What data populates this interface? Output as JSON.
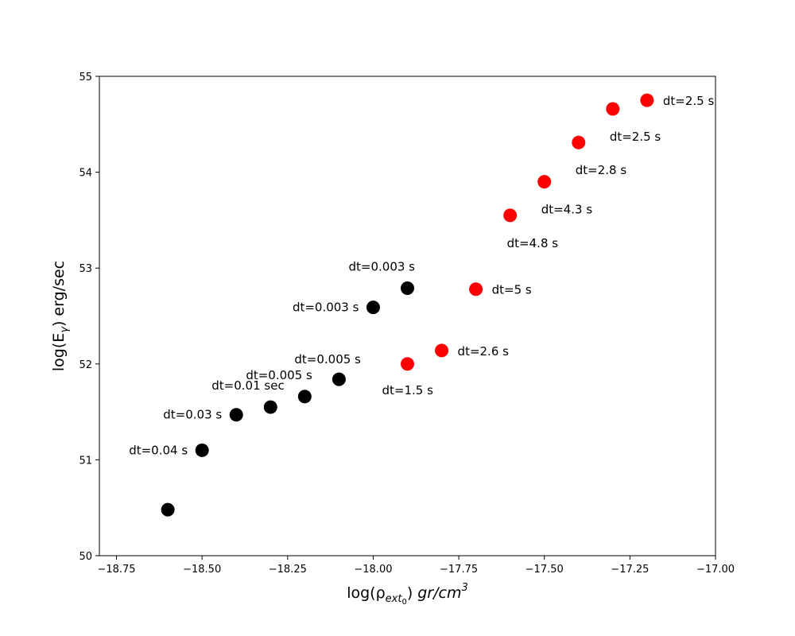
{
  "chart_data": {
    "type": "scatter",
    "xlabel": {
      "base": "log(ρ",
      "sub": "ext",
      "subsub": "0",
      "close": ")",
      "unit": "gr/cm",
      "unit_sup": "3"
    },
    "ylabel": {
      "base": "log(E",
      "sub": "γ",
      "close": ") erg/sec"
    },
    "xlim": [
      -18.8,
      -17.0
    ],
    "ylim": [
      50,
      55
    ],
    "xticks": [
      -18.75,
      -18.5,
      -18.25,
      -18.0,
      -17.75,
      -17.5,
      -17.25,
      -17.0
    ],
    "xtick_labels": [
      "−18.75",
      "−18.50",
      "−18.25",
      "−18.00",
      "−17.75",
      "−17.50",
      "−17.25",
      "−17.00"
    ],
    "yticks": [
      50,
      51,
      52,
      53,
      54,
      55
    ],
    "ytick_labels": [
      "50",
      "51",
      "52",
      "53",
      "54",
      "55"
    ],
    "grid": false,
    "series": [
      {
        "color": "#000000",
        "points": [
          {
            "x": -18.6,
            "y": 50.48,
            "label": ""
          },
          {
            "x": -18.5,
            "y": 51.1,
            "label": "dt=0.04 s",
            "pos": "left"
          },
          {
            "x": -18.4,
            "y": 51.47,
            "label": "dt=0.03 s",
            "pos": "left"
          },
          {
            "x": -18.3,
            "y": 51.55,
            "label": "dt=0.01 sec",
            "pos": "above-left"
          },
          {
            "x": -18.2,
            "y": 51.66,
            "label": "dt=0.005 s",
            "pos": "above-left"
          },
          {
            "x": -18.1,
            "y": 51.84,
            "label": "dt=0.005 s",
            "pos": "above"
          },
          {
            "x": -18.0,
            "y": 52.59,
            "label": "dt=0.003 s",
            "pos": "left"
          },
          {
            "x": -17.9,
            "y": 52.79,
            "label": "dt=0.003 s",
            "pos": "above-left"
          }
        ]
      },
      {
        "color": "#ff0000",
        "points": [
          {
            "x": -17.9,
            "y": 52.0,
            "label": "dt=1.5 s",
            "pos": "below"
          },
          {
            "x": -17.8,
            "y": 52.14,
            "label": "dt=2.6 s",
            "pos": "right"
          },
          {
            "x": -17.7,
            "y": 52.78,
            "label": "dt=5 s",
            "pos": "right"
          },
          {
            "x": -17.6,
            "y": 53.55,
            "label": "dt=4.8 s",
            "pos": "below-right"
          },
          {
            "x": -17.5,
            "y": 53.9,
            "label": "dt=4.3 s",
            "pos": "below-right"
          },
          {
            "x": -17.4,
            "y": 54.31,
            "label": "dt=2.8 s",
            "pos": "below-right"
          },
          {
            "x": -17.3,
            "y": 54.66,
            "label": "dt=2.5 s",
            "pos": "below-right"
          },
          {
            "x": -17.2,
            "y": 54.75,
            "label": "dt=2.5 s",
            "pos": "right"
          }
        ]
      }
    ]
  }
}
